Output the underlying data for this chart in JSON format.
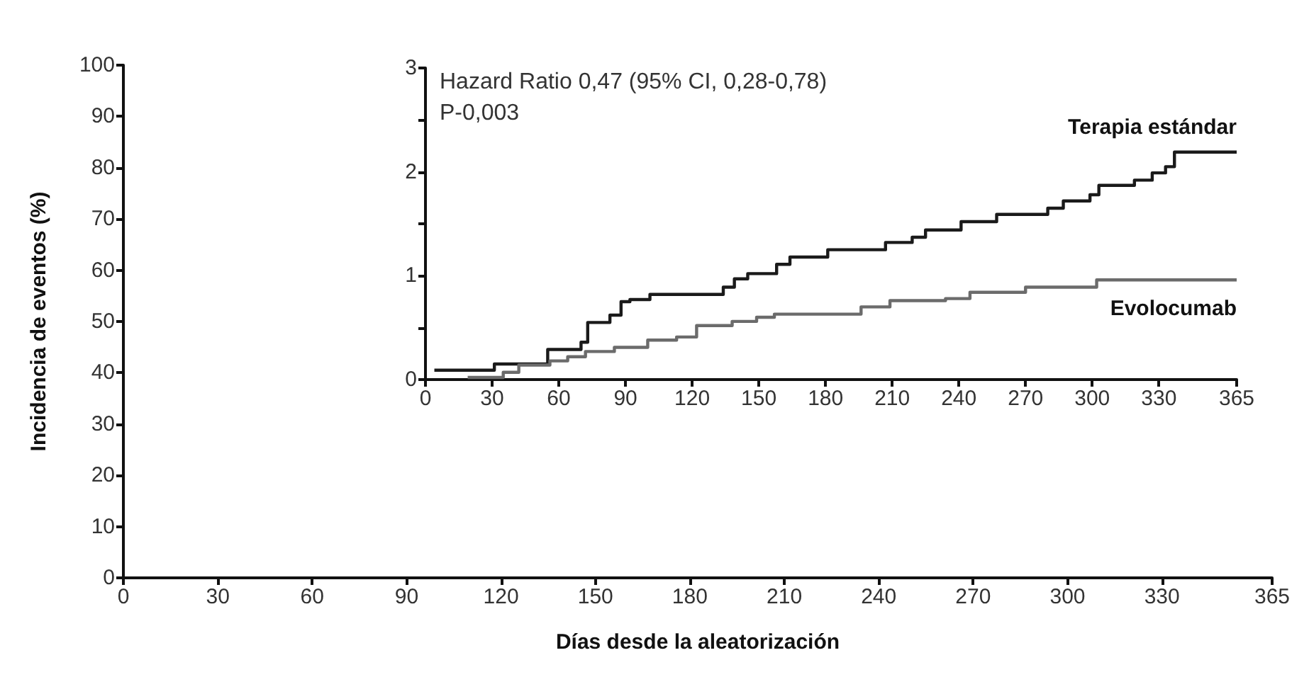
{
  "chart_data": [
    {
      "type": "step",
      "xlabel": "Días desde la aleatorización",
      "ylabel": "Incidencia de eventos (%)",
      "xlim": [
        0,
        365
      ],
      "xticks": [
        0,
        30,
        60,
        90,
        120,
        150,
        180,
        210,
        240,
        270,
        300,
        330,
        365
      ],
      "ylim": [
        0,
        100
      ],
      "yticks": [
        0,
        10,
        20,
        30,
        40,
        50,
        60,
        70,
        80,
        90,
        100
      ]
    },
    {
      "type": "step",
      "xlim": [
        0,
        365
      ],
      "xticks": [
        0,
        30,
        60,
        90,
        120,
        150,
        180,
        210,
        240,
        270,
        300,
        330,
        365
      ],
      "ylim": [
        0,
        3
      ],
      "yticks": [
        0,
        {
          "value": 0.5,
          "label": null
        },
        1,
        {
          "value": 1.5,
          "label": null
        },
        2,
        {
          "value": 2.5,
          "label": null
        },
        3
      ],
      "annotations": [
        "Hazard Ratio 0,47 (95% CI, 0,28-0,78)",
        "P-0,003"
      ],
      "series": [
        {
          "name": "Terapia estándar",
          "color": "#1a1a1a",
          "x": [
            4,
            31,
            55,
            70,
            73,
            83,
            88,
            92,
            101,
            134,
            139,
            145,
            158,
            164,
            181,
            207,
            219,
            225,
            241,
            257,
            280,
            287,
            299,
            303,
            319,
            327,
            333,
            337,
            365
          ],
          "values": [
            0.09,
            0.15,
            0.29,
            0.36,
            0.55,
            0.62,
            0.75,
            0.77,
            0.82,
            0.89,
            0.97,
            1.02,
            1.11,
            1.18,
            1.25,
            1.32,
            1.37,
            1.44,
            1.52,
            1.59,
            1.65,
            1.72,
            1.78,
            1.87,
            1.92,
            1.99,
            2.05,
            2.19,
            2.19
          ]
        },
        {
          "name": "Evolocumab",
          "color": "#6b6b6b",
          "x": [
            19,
            35,
            42,
            56,
            64,
            72,
            85,
            100,
            113,
            122,
            138,
            149,
            157,
            196,
            209,
            234,
            245,
            270,
            302,
            365
          ],
          "values": [
            0.02,
            0.07,
            0.14,
            0.18,
            0.22,
            0.27,
            0.31,
            0.38,
            0.41,
            0.52,
            0.56,
            0.6,
            0.63,
            0.7,
            0.76,
            0.78,
            0.84,
            0.89,
            0.96,
            0.96
          ]
        }
      ]
    }
  ]
}
